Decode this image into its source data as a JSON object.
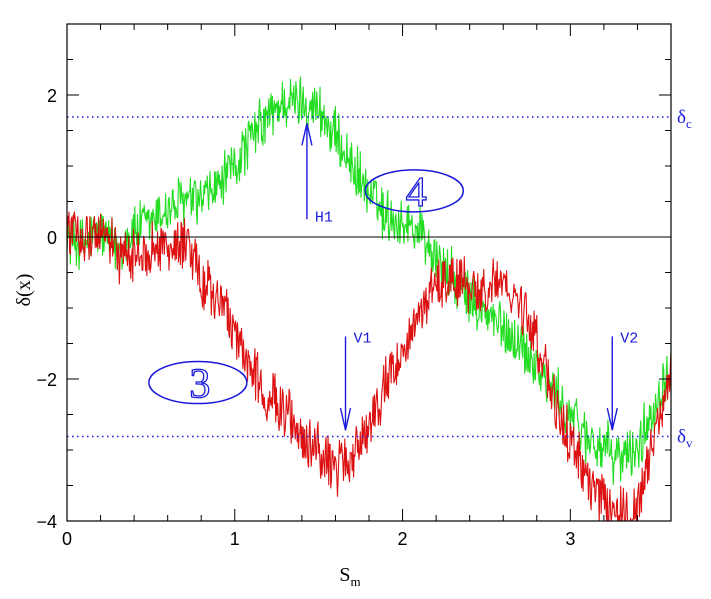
{
  "chart_data": {
    "type": "line",
    "xlabel": "S",
    "xlabel_sub": "m",
    "ylabel": "δ(x)",
    "xlim": [
      0,
      3.6
    ],
    "ylim": [
      -4,
      3
    ],
    "xticks": [
      0,
      1,
      2,
      3
    ],
    "xtick_labels": [
      "0",
      "1",
      "2",
      "3"
    ],
    "yticks": [
      -4,
      -2,
      0,
      2
    ],
    "ytick_labels": [
      "−4",
      "−2",
      "0",
      "2"
    ],
    "colors": {
      "green": "#22dd22",
      "red": "#dd1111",
      "blue": "#1a1adc",
      "axis": "#000000"
    },
    "reference_lines": [
      {
        "label": "δ",
        "sub": "c",
        "y": 1.69,
        "style": "dotted"
      },
      {
        "label": "δ",
        "sub": "v",
        "y": -2.81,
        "style": "dotted"
      },
      {
        "label": "",
        "y": 0,
        "style": "solid"
      }
    ],
    "annotations": [
      {
        "text": "H1",
        "x": 1.43,
        "y_tail": 0.25,
        "y_head": 1.6,
        "direction": "up"
      },
      {
        "text": "V1",
        "x": 1.66,
        "y_tail": -1.4,
        "y_head": -2.72,
        "direction": "down"
      },
      {
        "text": "V2",
        "x": 3.25,
        "y_tail": -1.4,
        "y_head": -2.72,
        "direction": "down"
      }
    ],
    "circled_labels": [
      {
        "text": "4",
        "x": 2.07,
        "y": 0.65
      },
      {
        "text": "3",
        "x": 0.78,
        "y": -2.05
      }
    ],
    "series": [
      {
        "color": "green",
        "x": [
          0,
          0.1,
          0.2,
          0.3,
          0.4,
          0.5,
          0.6,
          0.7,
          0.8,
          0.9,
          1.0,
          1.1,
          1.2,
          1.3,
          1.4,
          1.5,
          1.6,
          1.7,
          1.8,
          1.9,
          2.0,
          2.1,
          2.2,
          2.3,
          2.4,
          2.5,
          2.6,
          2.7,
          2.8,
          2.9,
          3.0,
          3.1,
          3.2,
          3.3,
          3.4,
          3.5,
          3.6
        ],
        "y": [
          0.0,
          -0.1,
          0.1,
          -0.2,
          0.1,
          0.2,
          0.4,
          0.5,
          0.5,
          0.7,
          1.0,
          1.4,
          1.7,
          1.9,
          1.9,
          1.8,
          1.4,
          1.0,
          0.6,
          0.3,
          0.2,
          0.1,
          -0.3,
          -0.6,
          -0.9,
          -1.1,
          -1.3,
          -1.5,
          -1.8,
          -2.2,
          -2.5,
          -2.8,
          -3.0,
          -3.1,
          -3.0,
          -2.4,
          -1.7
        ],
        "noise_amplitude": 0.35
      },
      {
        "color": "red",
        "x": [
          0,
          0.1,
          0.2,
          0.3,
          0.4,
          0.5,
          0.6,
          0.7,
          0.8,
          0.9,
          1.0,
          1.1,
          1.2,
          1.3,
          1.4,
          1.5,
          1.6,
          1.7,
          1.8,
          1.9,
          2.0,
          2.1,
          2.2,
          2.3,
          2.4,
          2.5,
          2.6,
          2.7,
          2.8,
          2.9,
          3.0,
          3.1,
          3.2,
          3.3,
          3.4,
          3.5,
          3.6
        ],
        "y": [
          0.1,
          0.0,
          0.1,
          -0.2,
          -0.3,
          -0.1,
          -0.2,
          -0.1,
          -0.6,
          -0.9,
          -1.4,
          -1.9,
          -2.2,
          -2.5,
          -2.8,
          -3.0,
          -3.3,
          -3.1,
          -2.6,
          -2.1,
          -1.6,
          -1.1,
          -0.7,
          -0.6,
          -0.7,
          -0.8,
          -0.6,
          -0.9,
          -1.5,
          -2.3,
          -2.9,
          -3.4,
          -3.7,
          -3.9,
          -3.8,
          -2.8,
          -1.8
        ],
        "noise_amplitude": 0.35
      }
    ]
  }
}
